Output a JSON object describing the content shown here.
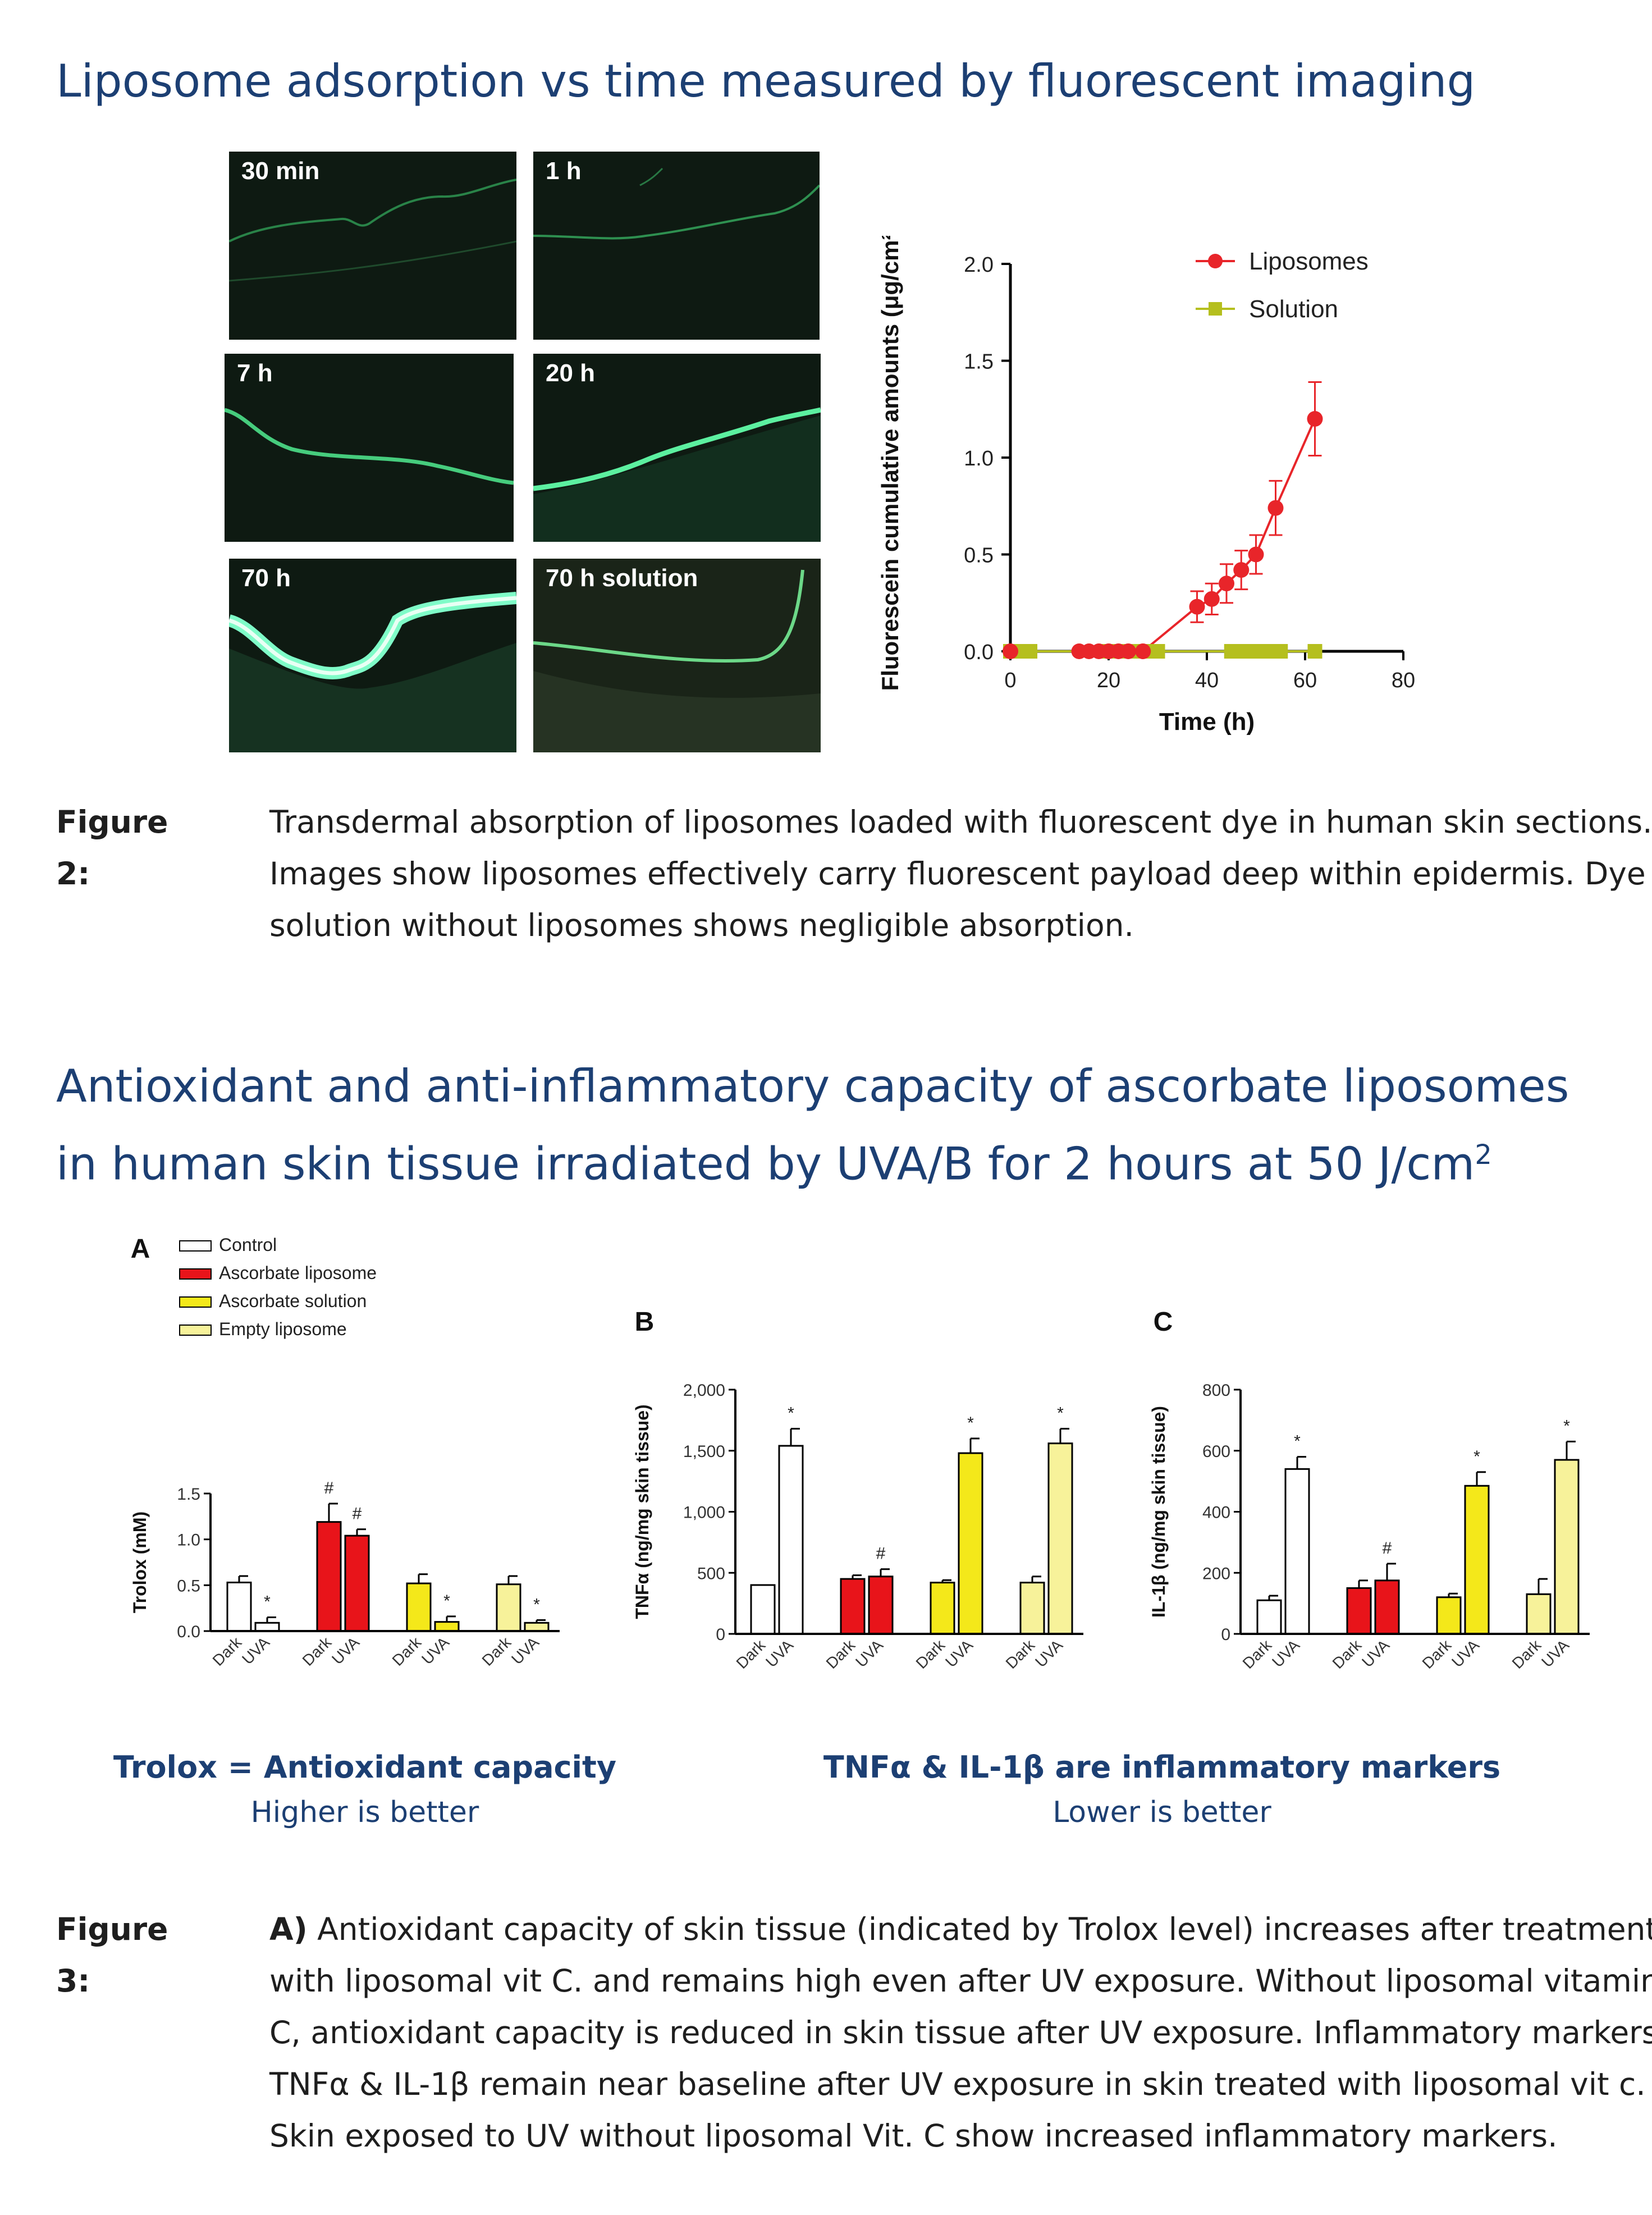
{
  "section1": {
    "heading": "Liposome adsorption vs time measured by fluorescent imaging"
  },
  "micrographs": [
    {
      "label": "30 min"
    },
    {
      "label": "1 h"
    },
    {
      "label": "7 h"
    },
    {
      "label": "20 h"
    },
    {
      "label": "70 h"
    },
    {
      "label": "70 h solution"
    }
  ],
  "figure2": {
    "label": "Figure 2:",
    "text": "Transdermal absorption of liposomes loaded with fluorescent dye in human skin sections. Images show liposomes effectively carry fluorescent payload deep within epidermis. Dye solution without liposomes shows negligible absorption."
  },
  "section2": {
    "heading_main": "Antioxidant and anti-inflammatory capacity of ascorbate liposomes in human skin tissue irradiated by UVA/B for 2 hours at 50 J/cm",
    "heading_sup": "2"
  },
  "colors": {
    "heading": "#1c3f73",
    "control": "#ffffff",
    "ascorbate_liposome": "#e8141a",
    "ascorbate_solution": "#f4e81a",
    "empty_liposome": "#f7f29a",
    "liposome_line": "#e8252a",
    "solution_marker": "#b5bf1e"
  },
  "notes": {
    "left_title": "Trolox = Antioxidant capacity",
    "left_sub": "Higher is better",
    "right_title": "TNFα & IL-1β are inflammatory markers",
    "right_sub": "Lower is better"
  },
  "figure3": {
    "label": "Figure 3:",
    "bold_lead": "A)",
    "text": " Antioxidant capacity of skin tissue (indicated by Trolox level) increases after treatment with liposomal vit C. and remains high even after UV exposure. Without liposomal vitamin C, antioxidant capacity is reduced in skin tissue after UV exposure. Inflammatory markers TNFα & IL-1β remain near baseline after UV exposure in skin treated with liposomal vit c.  Skin exposed to UV without liposomal Vit. C show increased inflammatory markers."
  },
  "chart_data": [
    {
      "id": "fluorescein",
      "type": "line",
      "title": "",
      "xlabel": "Time (h)",
      "ylabel": "Fluorescein cumulative amounts (μg/cm²)",
      "xlim": [
        0,
        80
      ],
      "ylim": [
        0,
        2.0
      ],
      "xticks": [
        0,
        20,
        40,
        60,
        80
      ],
      "yticks": [
        0.0,
        0.5,
        1.0,
        1.5,
        2.0
      ],
      "xtick_labels": [
        "0",
        "20",
        "40",
        "60",
        "80"
      ],
      "ytick_labels": [
        "0.0",
        "0.5",
        "1.0",
        "1.5",
        "2.0"
      ],
      "legend": "top-right",
      "series": [
        {
          "name": "Liposomes",
          "x": [
            0,
            14,
            16,
            18,
            20,
            22,
            24,
            27,
            38,
            41,
            44,
            47,
            50,
            54,
            62
          ],
          "y": [
            0,
            0,
            0,
            0,
            0,
            0,
            0,
            0,
            0.23,
            0.27,
            0.35,
            0.42,
            0.5,
            0.74,
            1.2
          ],
          "err": [
            0,
            0,
            0,
            0,
            0,
            0,
            0,
            0,
            0.08,
            0.08,
            0.1,
            0.1,
            0.1,
            0.14,
            0.19
          ]
        },
        {
          "name": "Solution",
          "x": [
            0,
            2,
            4,
            20,
            22,
            24,
            26,
            28,
            30,
            45,
            47,
            49,
            51,
            53,
            55,
            62
          ],
          "y": [
            0,
            0,
            0,
            0,
            0,
            0,
            0,
            0,
            0,
            0,
            0,
            0,
            0,
            0,
            0,
            0
          ]
        }
      ]
    },
    {
      "id": "A",
      "panel_label": "A",
      "type": "bar",
      "ylabel": "Trolox (mM)",
      "ylim": [
        0,
        1.5
      ],
      "yticks": [
        0.0,
        0.5,
        1.0,
        1.5
      ],
      "ytick_labels": [
        "0.0",
        "0.5",
        "1.0",
        "1.5"
      ],
      "legend": "top-left",
      "legend_entries": [
        "Control",
        "Ascorbate liposome",
        "Ascorbate solution",
        "Empty liposome"
      ],
      "categories": [
        "Dark",
        "UVA",
        "Dark",
        "UVA",
        "Dark",
        "UVA",
        "Dark",
        "UVA"
      ],
      "groups": [
        {
          "name": "Control",
          "values": [
            0.53,
            0.09
          ],
          "err": [
            0.07,
            0.06
          ],
          "marks": [
            "",
            "*"
          ]
        },
        {
          "name": "Ascorbate liposome",
          "values": [
            1.19,
            1.04
          ],
          "err": [
            0.2,
            0.07
          ],
          "marks": [
            "#",
            "#"
          ]
        },
        {
          "name": "Ascorbate solution",
          "values": [
            0.52,
            0.1
          ],
          "err": [
            0.1,
            0.06
          ],
          "marks": [
            "",
            "*"
          ]
        },
        {
          "name": "Empty liposome",
          "values": [
            0.51,
            0.09
          ],
          "err": [
            0.09,
            0.03
          ],
          "marks": [
            "",
            "*"
          ]
        }
      ]
    },
    {
      "id": "B",
      "panel_label": "B",
      "type": "bar",
      "ylabel": "TNFα (ng/mg skin tissue)",
      "ylim": [
        0,
        2000
      ],
      "yticks": [
        0,
        500,
        1000,
        1500,
        2000
      ],
      "ytick_labels": [
        "0",
        "500",
        "1,000",
        "1,500",
        "2,000"
      ],
      "categories": [
        "Dark",
        "UVA",
        "Dark",
        "UVA",
        "Dark",
        "UVA",
        "Dark",
        "UVA"
      ],
      "groups": [
        {
          "name": "Control",
          "values": [
            400,
            1540
          ],
          "err": [
            0,
            140
          ],
          "marks": [
            "",
            "*"
          ]
        },
        {
          "name": "Ascorbate liposome",
          "values": [
            450,
            470
          ],
          "err": [
            30,
            60
          ],
          "marks": [
            "",
            "#"
          ]
        },
        {
          "name": "Ascorbate solution",
          "values": [
            420,
            1480
          ],
          "err": [
            20,
            120
          ],
          "marks": [
            "",
            "*"
          ]
        },
        {
          "name": "Empty liposome",
          "values": [
            420,
            1560
          ],
          "err": [
            50,
            120
          ],
          "marks": [
            "",
            "*"
          ]
        }
      ]
    },
    {
      "id": "C",
      "panel_label": "C",
      "type": "bar",
      "ylabel": "IL-1β (ng/mg skin tissue)",
      "ylim": [
        0,
        800
      ],
      "yticks": [
        0,
        200,
        400,
        600,
        800
      ],
      "ytick_labels": [
        "0",
        "200",
        "400",
        "600",
        "800"
      ],
      "categories": [
        "Dark",
        "UVA",
        "Dark",
        "UVA",
        "Dark",
        "UVA",
        "Dark",
        "UVA"
      ],
      "groups": [
        {
          "name": "Control",
          "values": [
            110,
            540
          ],
          "err": [
            15,
            40
          ],
          "marks": [
            "",
            "*"
          ]
        },
        {
          "name": "Ascorbate liposome",
          "values": [
            150,
            175
          ],
          "err": [
            25,
            55
          ],
          "marks": [
            "",
            "#"
          ]
        },
        {
          "name": "Ascorbate solution",
          "values": [
            120,
            485
          ],
          "err": [
            12,
            45
          ],
          "marks": [
            "",
            "*"
          ]
        },
        {
          "name": "Empty liposome",
          "values": [
            130,
            570
          ],
          "err": [
            50,
            60
          ],
          "marks": [
            "",
            "*"
          ]
        }
      ]
    }
  ]
}
